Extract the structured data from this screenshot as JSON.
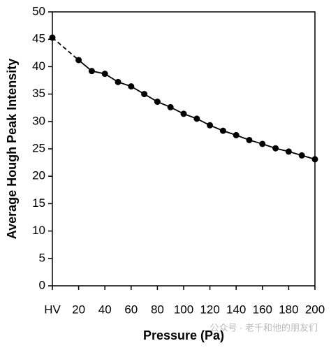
{
  "chart_data": {
    "type": "line",
    "x_label": "Pressure (Pa)",
    "y_label": "Average Hough Peak Intensity",
    "x": [
      0,
      20,
      30,
      40,
      50,
      60,
      70,
      80,
      90,
      100,
      110,
      120,
      130,
      140,
      150,
      160,
      170,
      180,
      190,
      200
    ],
    "series": [
      {
        "color": "#000000",
        "values": [
          45.3,
          41.2,
          39.2,
          38.7,
          37.2,
          36.4,
          35.0,
          33.6,
          32.6,
          31.4,
          30.5,
          29.3,
          28.3,
          27.5,
          26.6,
          25.9,
          25.1,
          24.5,
          23.8,
          23.1
        ]
      }
    ],
    "dashed_first_segment": true,
    "xlim": [
      0,
      200
    ],
    "xticks": [
      {
        "value": 0,
        "label": "HV"
      },
      20,
      40,
      60,
      80,
      100,
      120,
      140,
      160,
      180,
      200
    ],
    "ylim": [
      0,
      50
    ],
    "yticks": [
      0,
      5,
      10,
      15,
      20,
      25,
      30,
      35,
      40,
      45,
      50
    ],
    "grid": false,
    "watermark": "公众号 · 老千和他的朋友们"
  }
}
